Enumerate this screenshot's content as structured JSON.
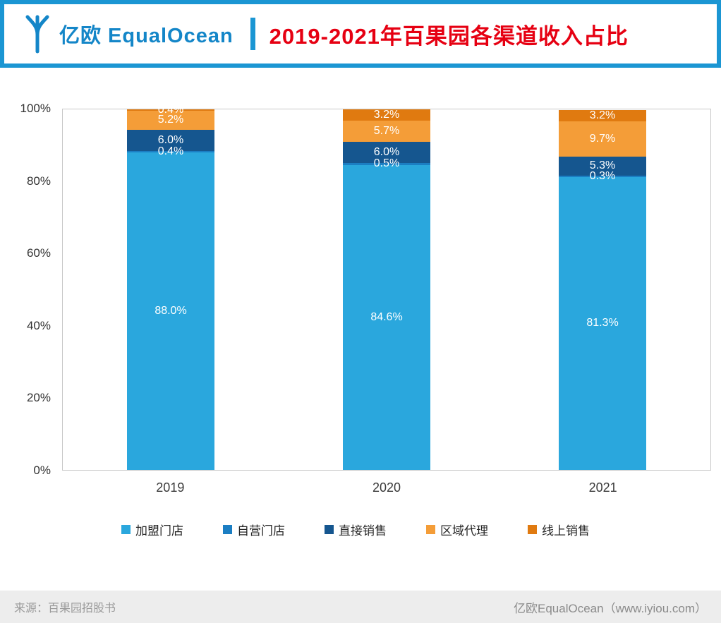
{
  "header": {
    "logo_text": "亿欧 EqualOcean",
    "title": "2019-2021年百果园各渠道收入占比"
  },
  "colors": {
    "accent_blue": "#1b96d3",
    "logo_blue": "#1486c8",
    "title_red": "#e60012",
    "footer_bg": "#ededed"
  },
  "chart_data": {
    "type": "bar",
    "stacked": true,
    "grid": false,
    "categories": [
      "2019",
      "2020",
      "2021"
    ],
    "series": [
      {
        "name": "加盟门店",
        "color": "#2aa7dd",
        "values": [
          88.0,
          84.6,
          81.3
        ]
      },
      {
        "name": "自营门店",
        "color": "#1b7ec3",
        "values": [
          0.4,
          0.5,
          0.3
        ]
      },
      {
        "name": "直接销售",
        "color": "#15568f",
        "values": [
          6.0,
          6.0,
          5.3
        ]
      },
      {
        "name": "区域代理",
        "color": "#f49d38",
        "values": [
          5.2,
          5.7,
          9.7
        ]
      },
      {
        "name": "线上销售",
        "color": "#e07a10",
        "values": [
          0.4,
          3.2,
          3.2
        ]
      }
    ],
    "ylim": [
      0,
      100
    ],
    "yticks": [
      "0%",
      "20%",
      "40%",
      "60%",
      "80%",
      "100%"
    ],
    "legend_position": "bottom"
  },
  "footer": {
    "source": "来源：百果园招股书",
    "credit": "亿欧EqualOcean（www.iyiou.com）"
  }
}
